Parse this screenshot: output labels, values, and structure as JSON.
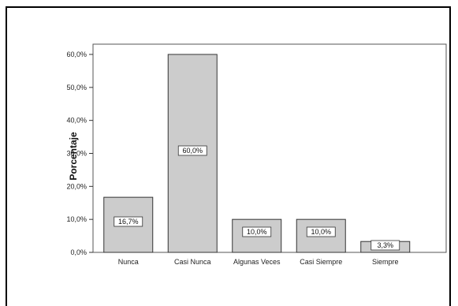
{
  "chart_data": {
    "type": "bar",
    "categories": [
      "Nunca",
      "Casi Nunca",
      "Algunas Veces",
      "Casi Siempre",
      "Siempre"
    ],
    "values": [
      16.7,
      60.0,
      10.0,
      10.0,
      3.3
    ],
    "data_labels": [
      "16,7%",
      "60,0%",
      "10,0%",
      "10,0%",
      "3,3%"
    ],
    "title": "",
    "xlabel": "",
    "ylabel": "Porcentaje",
    "ylim": [
      0,
      60
    ],
    "yticks": [
      0,
      10,
      20,
      30,
      40,
      50,
      60
    ],
    "ytick_labels": [
      "0,0%",
      "10,0%",
      "20,0%",
      "30,0%",
      "40,0%",
      "50,0%",
      "60,0%"
    ],
    "grid": false,
    "bar_color": "#cccccc",
    "bar_edge_color": "#333333"
  }
}
